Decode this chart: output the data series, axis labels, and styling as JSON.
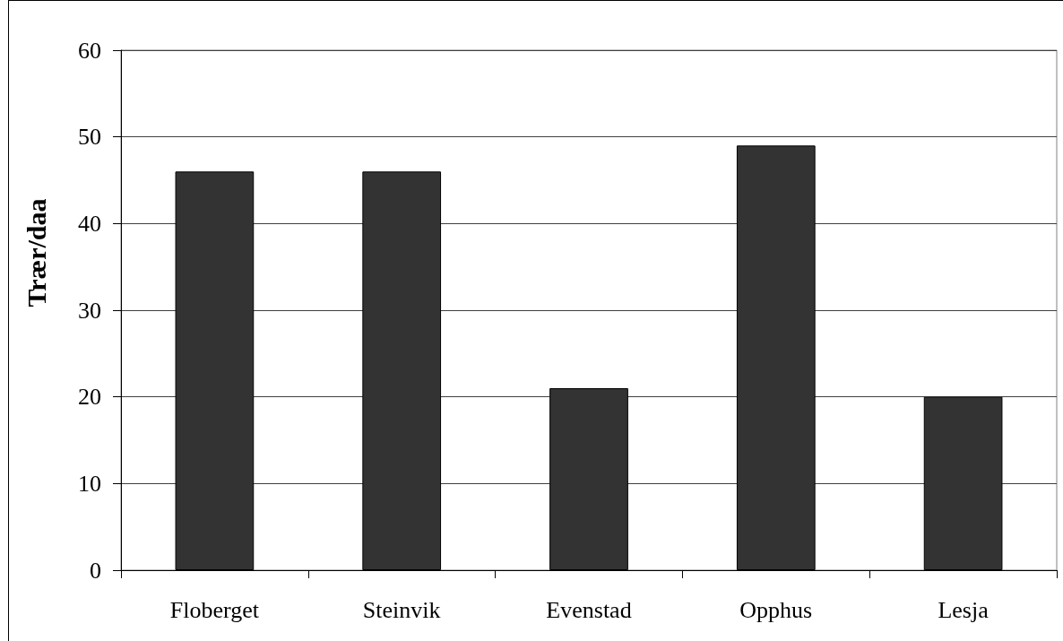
{
  "chart_data": {
    "type": "bar",
    "ylabel": "Trær/daa",
    "categories": [
      "Floberget",
      "Steinvik",
      "Evenstad",
      "Opphus",
      "Lesja"
    ],
    "values": [
      46,
      46,
      21,
      49,
      20
    ],
    "color": "#333333",
    "ylim": [
      0,
      60
    ],
    "yticks": [
      0,
      10,
      20,
      30,
      40,
      50,
      60
    ],
    "grid": "y"
  }
}
